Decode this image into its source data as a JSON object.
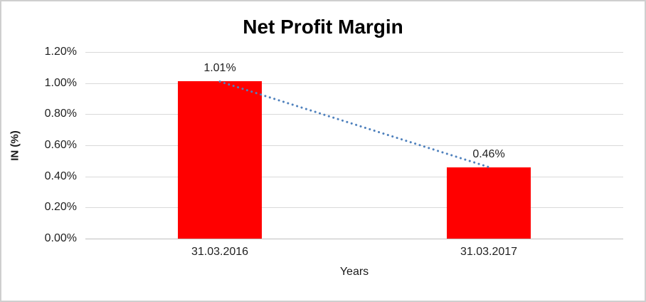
{
  "chart_data": {
    "type": "bar",
    "title": "Net Profit Margin",
    "xlabel": "Years",
    "ylabel": "IN (%)",
    "categories": [
      "31.03.2016",
      "31.03.2017"
    ],
    "values": [
      1.01,
      0.46
    ],
    "data_labels": [
      "1.01%",
      "0.46%"
    ],
    "ylim": [
      0,
      1.2
    ],
    "ytick_labels": [
      "0.00%",
      "0.20%",
      "0.40%",
      "0.60%",
      "0.80%",
      "1.00%",
      "1.20%"
    ],
    "ytick_values": [
      0,
      0.2,
      0.4,
      0.6,
      0.8,
      1.0,
      1.2
    ],
    "grid": true,
    "legend_position": "none",
    "bar_color": "#ff0000",
    "gridline_color": "#d9d9d9",
    "trendline": {
      "style": "dotted",
      "color": "#4f81bd",
      "from_value": 1.01,
      "to_value": 0.46
    }
  }
}
